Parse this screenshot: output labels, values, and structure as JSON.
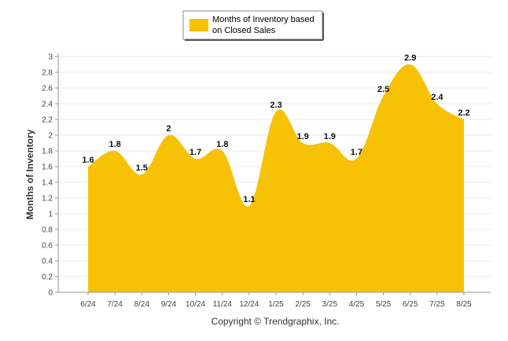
{
  "chart_data": {
    "type": "area",
    "categories": [
      "6/24",
      "7/24",
      "8/24",
      "9/24",
      "10/24",
      "11/24",
      "12/24",
      "1/25",
      "2/25",
      "3/25",
      "4/25",
      "5/25",
      "6/25",
      "7/25",
      "8/25"
    ],
    "series": [
      {
        "name": "Months of Inventory based on Closed Sales",
        "values": [
          1.6,
          1.8,
          1.5,
          2,
          1.7,
          1.8,
          1.1,
          2.3,
          1.9,
          1.9,
          1.7,
          2.5,
          2.9,
          2.4,
          2.2
        ],
        "labels": [
          "1.6",
          "1.8",
          "1.5",
          "2",
          "1.7",
          "1.8",
          "1.1",
          "2.3",
          "1.9",
          "1.9",
          "1.7",
          "2.5",
          "2.9",
          "2.4",
          "2.2"
        ],
        "color": "#F7C206"
      }
    ],
    "legend_lines": [
      "Months of Inventory based",
      "on Closed Sales"
    ],
    "ylabel": "Months of Inventory",
    "xlabel": "",
    "ylim": [
      0,
      3
    ],
    "yticks": [
      "0",
      "0.2",
      "0.4",
      "0.6",
      "0.8",
      "1",
      "1.2",
      "1.4",
      "1.6",
      "1.8",
      "2",
      "2.2",
      "2.4",
      "2.6",
      "2.8",
      "3"
    ],
    "grid": true,
    "legend_position": "top-center",
    "footer": "Copyright © Trendgraphix, Inc."
  }
}
